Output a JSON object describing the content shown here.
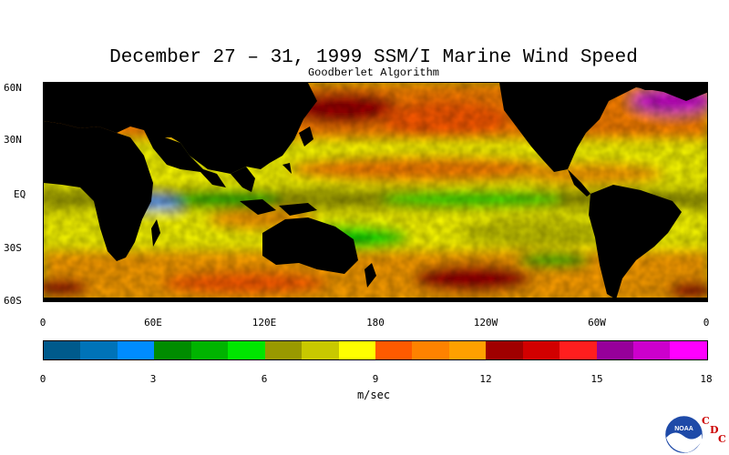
{
  "title": "December 27 – 31, 1999 SSM/I Marine Wind Speed",
  "subtitle": "Goodberlet Algorithm",
  "lat_labels": [
    "60N",
    "30N",
    "EQ",
    "30S",
    "60S"
  ],
  "lon_labels": [
    "0",
    "60E",
    "120E",
    "180",
    "120W",
    "60W",
    "0"
  ],
  "colorbar": {
    "colors": [
      "#005a8c",
      "#0073b8",
      "#008cff",
      "#008c00",
      "#00b400",
      "#00e600",
      "#999900",
      "#c8c800",
      "#ffff00",
      "#ff5a00",
      "#ff8200",
      "#ffa000",
      "#a00000",
      "#d20000",
      "#ff1e1e",
      "#96009a",
      "#cc00cc",
      "#ff00ff"
    ],
    "ticks": [
      "0",
      "3",
      "6",
      "9",
      "12",
      "15",
      "18"
    ],
    "units": "m/sec"
  },
  "logo": {
    "emblem": "noaa-logo",
    "text": "NOAA",
    "letters": [
      "C",
      "D",
      "C"
    ]
  }
}
